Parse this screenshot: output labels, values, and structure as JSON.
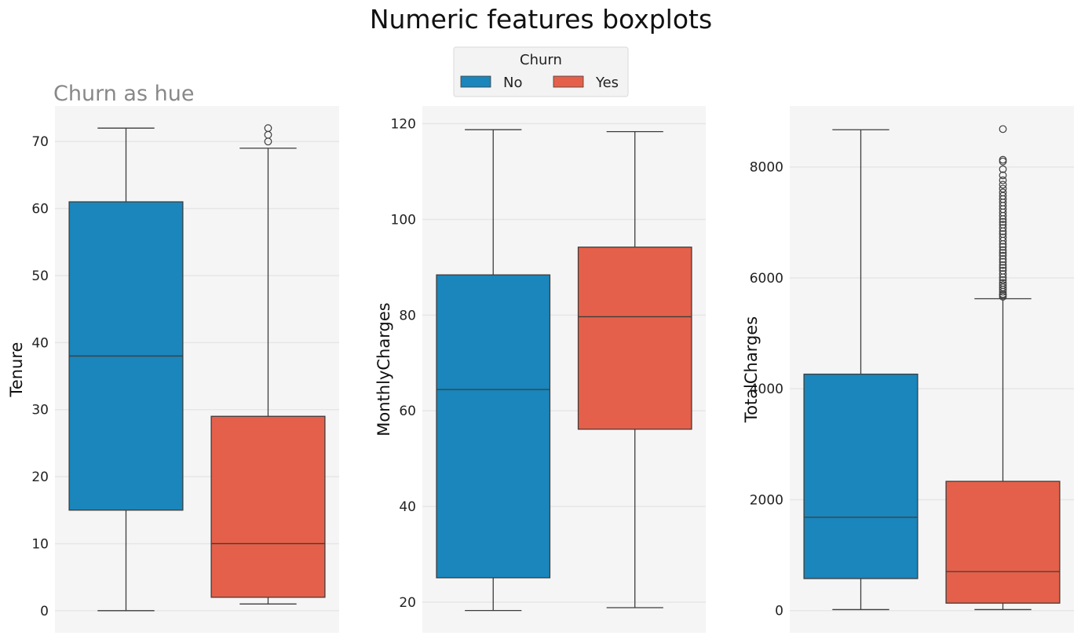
{
  "title": "Numeric features boxplots",
  "colors": {
    "No": "#1a86bb",
    "Yes": "#e5604a",
    "panel_bg": "#f5f5f5",
    "grid": "#e6e6e6",
    "line": "#3d3d3d"
  },
  "legend": {
    "title": "Churn",
    "placement": "top-center",
    "entries": [
      "No",
      "Yes"
    ]
  },
  "chart_data": [
    {
      "type": "box",
      "subtitle": "Churn as hue",
      "ylabel": "Tenure",
      "ylim": [
        -3.3,
        75.3
      ],
      "yticks": [
        0,
        10,
        20,
        30,
        40,
        50,
        60,
        70
      ],
      "series": [
        {
          "name": "No",
          "whisker_low": 0,
          "q1": 15,
          "median": 38,
          "q3": 61,
          "whisker_high": 72,
          "outliers": []
        },
        {
          "name": "Yes",
          "whisker_low": 1,
          "q1": 2,
          "median": 10,
          "q3": 29,
          "whisker_high": 69,
          "outliers": [
            70,
            71,
            72
          ]
        }
      ]
    },
    {
      "type": "box",
      "subtitle": "",
      "ylabel": "MonthlyCharges",
      "ylim": [
        13.6,
        123.7
      ],
      "yticks": [
        20,
        40,
        60,
        80,
        100,
        120
      ],
      "series": [
        {
          "name": "No",
          "whisker_low": 18.25,
          "q1": 25.1,
          "median": 64.45,
          "q3": 88.4,
          "whisker_high": 118.75,
          "outliers": []
        },
        {
          "name": "Yes",
          "whisker_low": 18.85,
          "q1": 56.15,
          "median": 79.65,
          "q3": 94.2,
          "whisker_high": 118.35,
          "outliers": []
        }
      ]
    },
    {
      "type": "box",
      "subtitle": "",
      "ylabel": "TotalCharges",
      "ylim": [
        -400,
        9100
      ],
      "yticks": [
        0,
        2000,
        4000,
        6000,
        8000
      ],
      "series": [
        {
          "name": "No",
          "whisker_low": 18.8,
          "q1": 578,
          "median": 1683,
          "q3": 4264,
          "whisker_high": 8672,
          "outliers": []
        },
        {
          "name": "Yes",
          "whisker_low": 18.85,
          "q1": 135,
          "median": 704,
          "q3": 2331,
          "whisker_high": 5624,
          "outliers": [
            5660,
            5690,
            5710,
            5750,
            5790,
            5830,
            5870,
            5910,
            5960,
            6010,
            6070,
            6130,
            6180,
            6230,
            6290,
            6340,
            6400,
            6450,
            6500,
            6560,
            6610,
            6670,
            6730,
            6790,
            6840,
            6900,
            6960,
            7010,
            7060,
            7120,
            7180,
            7240,
            7300,
            7360,
            7420,
            7480,
            7540,
            7610,
            7680,
            7760,
            7850,
            7960,
            8100,
            8130,
            8684
          ]
        }
      ]
    }
  ]
}
